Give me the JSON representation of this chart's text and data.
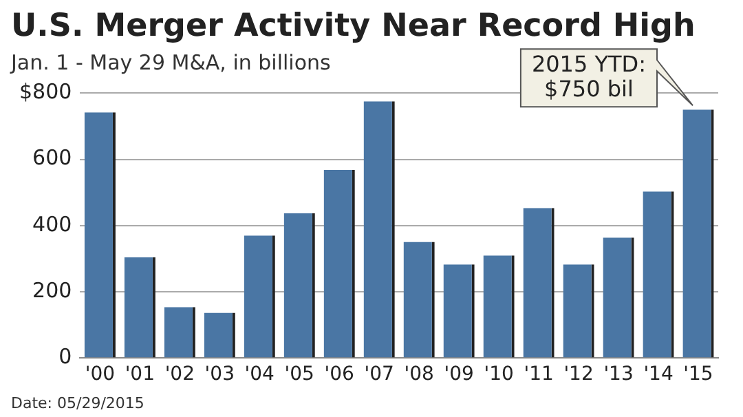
{
  "chart_data": {
    "type": "bar",
    "title": "U.S. Merger Activity Near Record High",
    "subtitle": "Jan. 1 - May 29 M&A, in billions",
    "categories": [
      "'00",
      "'01",
      "'02",
      "'03",
      "'04",
      "'05",
      "'06",
      "'07",
      "'08",
      "'09",
      "'10",
      "'11",
      "'12",
      "'13",
      "'14",
      "'15"
    ],
    "values": [
      742,
      304,
      154,
      137,
      370,
      437,
      568,
      775,
      351,
      283,
      310,
      453,
      283,
      364,
      503,
      750
    ],
    "color": "#4a76a4",
    "ylim": [
      0,
      800
    ],
    "yticks": [
      0,
      200,
      400,
      600,
      {
        "value": 800,
        "label": "$800"
      }
    ],
    "grid": "y",
    "legend": false,
    "annotations": [
      {
        "text": "2015 YTD:\n$750 bil",
        "x": "'15",
        "y": 750
      },
      "Date: 05/29/2015"
    ]
  }
}
